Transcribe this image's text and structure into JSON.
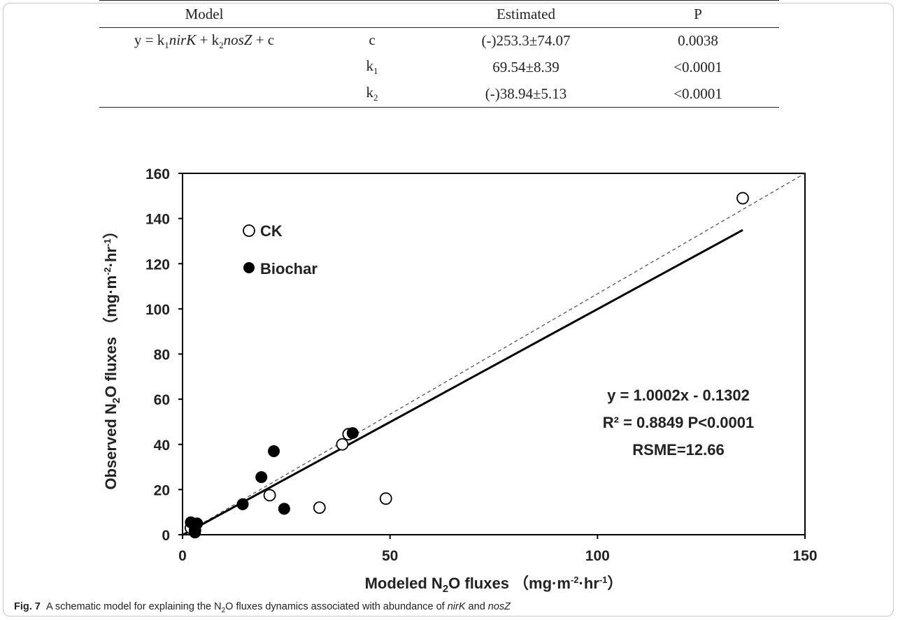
{
  "table": {
    "headers": [
      "Model",
      "",
      "Estimated",
      "P"
    ],
    "formula": {
      "a": "y = k",
      "a_sub": "1",
      "b": "nirK",
      "c": " + k",
      "c_sub": "2",
      "d": "nosZ",
      "e": " + c"
    },
    "rows": [
      {
        "param": "c",
        "param_sub": "",
        "estimated": "(-)253.3±74.07",
        "p": "0.0038"
      },
      {
        "param": "k",
        "param_sub": "1",
        "estimated": "69.54±8.39",
        "p": "<0.0001"
      },
      {
        "param": "k",
        "param_sub": "2",
        "estimated": "(-)38.94±5.13",
        "p": "<0.0001"
      }
    ]
  },
  "chart_data": {
    "type": "scatter",
    "xlim": [
      0,
      150
    ],
    "ylim": [
      0,
      160
    ],
    "xticks": [
      0,
      50,
      100,
      150
    ],
    "yticks": [
      0,
      20,
      40,
      60,
      80,
      100,
      120,
      140,
      160
    ],
    "xlabel": {
      "pre": "Modeled N",
      "sub": "2",
      "post": "O fluxes （mg·m",
      "sup1": "-2",
      "mid": "·hr",
      "sup2": "-1",
      "end": "）"
    },
    "ylabel": {
      "pre": "Observed N",
      "sub": "2",
      "post": "O fluxes （mg·m",
      "sup1": "-2",
      "mid": "·hr",
      "sup2": "-1",
      "end": "）"
    },
    "legend_position": "top-left",
    "series": [
      {
        "name": "CK",
        "marker": "open-circle",
        "points": [
          [
            2,
            3
          ],
          [
            3,
            2
          ],
          [
            21,
            17.5
          ],
          [
            33,
            12
          ],
          [
            38.5,
            40
          ],
          [
            40,
            44.5
          ],
          [
            49,
            16
          ],
          [
            135,
            149
          ]
        ]
      },
      {
        "name": "Biochar",
        "marker": "filled-circle",
        "points": [
          [
            2,
            5.5
          ],
          [
            3,
            1
          ],
          [
            3,
            3.5
          ],
          [
            3.5,
            5
          ],
          [
            14.5,
            13.5
          ],
          [
            19,
            25.5
          ],
          [
            22,
            37
          ],
          [
            24.5,
            11.5
          ],
          [
            41,
            45
          ]
        ]
      }
    ],
    "fit_line": {
      "label": "y = 1.0002x - 0.1302",
      "x": [
        0,
        135
      ],
      "y": [
        -0.13,
        134.9
      ]
    },
    "reference_line": {
      "style": "dashed",
      "x": [
        0,
        150
      ],
      "y": [
        0,
        160
      ]
    },
    "annotations": [
      "y = 1.0002x - 0.1302",
      "R² = 0.8849 P<0.0001",
      "RSME=12.66"
    ]
  },
  "caption": {
    "label": "Fig. 7",
    "t1": "A schematic model for explaining the N",
    "sub": "2",
    "t2": "O fluxes dynamics associated with abundance of ",
    "g1": "nirK",
    "t3": " and ",
    "g2": "nosZ"
  }
}
